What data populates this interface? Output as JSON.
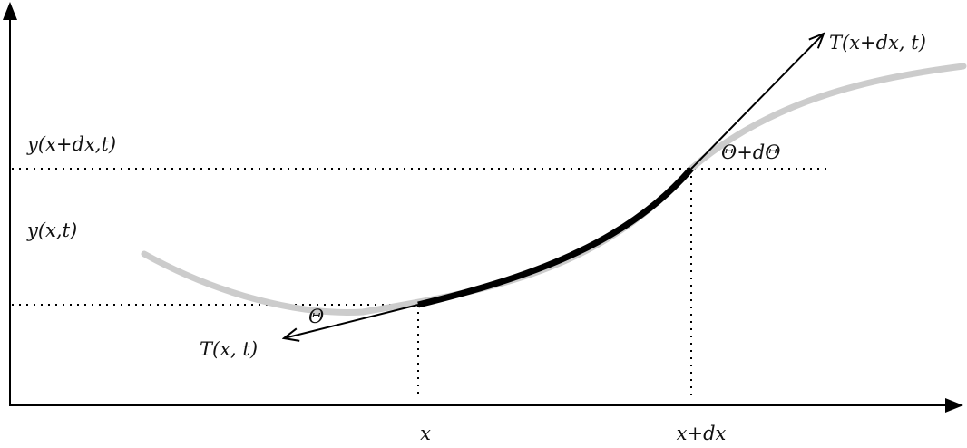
{
  "labels": {
    "y_upper": "y(x+dx,t)",
    "y_lower": "y(x,t)",
    "x": "x",
    "x_dx": "x+dx",
    "tension_left": "T(x, t)",
    "tension_right": "T(x+dx, t)",
    "angle_left": "Θ",
    "angle_right": "Θ+dΘ"
  },
  "colors": {
    "axis": "#000000",
    "string_full": "#cccccc",
    "string_segment": "#000000",
    "guide_lines": "#000000",
    "tension_arrows": "#000000"
  }
}
